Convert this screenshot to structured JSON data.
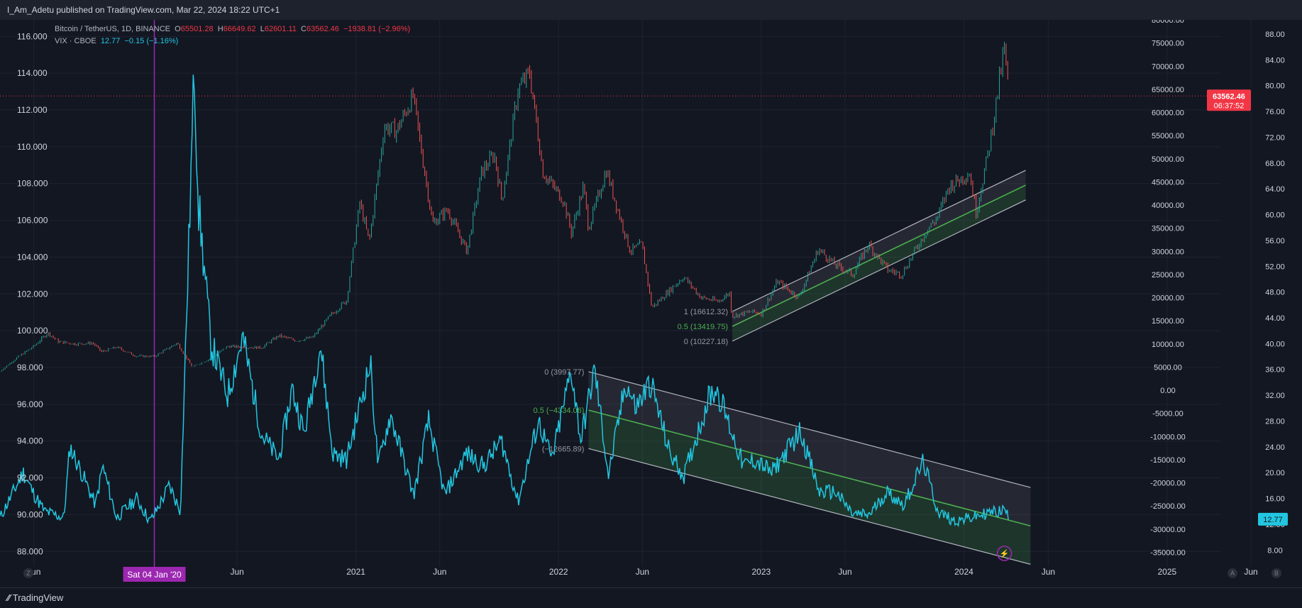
{
  "header": {
    "publisher": "I_Am_Adetu published on TradingView.com, Mar 22, 2024 18:22 UTC+1"
  },
  "footer": {
    "brand": "TradingView"
  },
  "legend": {
    "btc": {
      "label": "Bitcoin / TetherUS, 1D, BINANCE",
      "o_label": "O",
      "o": "65501.28",
      "h_label": "H",
      "h": "66649.62",
      "l_label": "L",
      "l": "62601.11",
      "c_label": "C",
      "c": "63562.46",
      "chg": "−1938.81 (−2.96%)"
    },
    "vix": {
      "label": "VIX · CBOE",
      "value": "12.77",
      "chg": "−0.15 (−1.16%)"
    }
  },
  "colors": {
    "background": "#131722",
    "bull": "#26a69a",
    "bear": "#ef5350",
    "vix": "#22c6e0",
    "price_tag": "#f23645",
    "crosshair": "#9c27b0",
    "midline": "#4caf50",
    "channel": "#787b86"
  },
  "chart_data": {
    "type": "line",
    "x_range": [
      "2019-04-01",
      "2025-09-01"
    ],
    "x_ticks": [
      {
        "label": "Jun",
        "date": "2019-06-01"
      },
      {
        "label": "Jun",
        "date": "2020-06-01"
      },
      {
        "label": "2021",
        "date": "2021-01-01"
      },
      {
        "label": "Jun",
        "date": "2021-06-01"
      },
      {
        "label": "2022",
        "date": "2022-01-01"
      },
      {
        "label": "Jun",
        "date": "2022-06-01"
      },
      {
        "label": "2023",
        "date": "2023-01-01"
      },
      {
        "label": "Jun",
        "date": "2023-06-01"
      },
      {
        "label": "2024",
        "date": "2024-01-01"
      },
      {
        "label": "Jun",
        "date": "2024-06-01"
      },
      {
        "label": "2025",
        "date": "2025-01-01"
      },
      {
        "label": "Jun",
        "date": "2025-06-01"
      }
    ],
    "crosshair_x_label": "Sat 04 Jan '20",
    "left_axis": {
      "ylim": [
        87.2,
        116.9
      ],
      "ticks": [
        "116.000",
        "114.000",
        "112.000",
        "110.000",
        "108.000",
        "106.000",
        "104.000",
        "102.000",
        "100.000",
        "98.000",
        "96.000",
        "94.000",
        "92.000",
        "90.000",
        "88.000"
      ]
    },
    "right_axis_btc": {
      "ylim": [
        -38000,
        80000
      ],
      "ticks": [
        "80000.00",
        "75000.00",
        "70000.00",
        "65000.00",
        "60000.00",
        "55000.00",
        "50000.00",
        "45000.00",
        "40000.00",
        "35000.00",
        "30000.00",
        "25000.00",
        "20000.00",
        "15000.00",
        "10000.00",
        "5000.00",
        "0.00",
        "-5000.00",
        "-10000.00",
        "-15000.00",
        "-20000.00",
        "-25000.00",
        "-30000.00",
        "-35000.00"
      ]
    },
    "right_axis_vix": {
      "ylim": [
        5.5,
        90.2
      ],
      "ticks": [
        "88.00",
        "84.00",
        "80.00",
        "76.00",
        "72.00",
        "68.00",
        "64.00",
        "60.00",
        "56.00",
        "52.00",
        "48.00",
        "44.00",
        "40.00",
        "36.00",
        "32.00",
        "28.00",
        "24.00",
        "20.00",
        "16.00",
        "12.00",
        "8.00"
      ]
    },
    "last_price": {
      "value": "63562.46",
      "countdown": "06:37:52"
    },
    "last_vix": "12.77",
    "series": [
      {
        "name": "Bitcoin / TetherUS",
        "style": "candles",
        "points": [
          [
            "2019-04-01",
            4100
          ],
          [
            "2019-05-01",
            7000
          ],
          [
            "2019-06-01",
            9500
          ],
          [
            "2019-06-26",
            12400
          ],
          [
            "2019-07-15",
            10500
          ],
          [
            "2019-08-15",
            10000
          ],
          [
            "2019-09-15",
            10200
          ],
          [
            "2019-10-01",
            8300
          ],
          [
            "2019-10-28",
            9300
          ],
          [
            "2019-12-01",
            7400
          ],
          [
            "2020-01-04",
            7300
          ],
          [
            "2020-02-14",
            10200
          ],
          [
            "2020-03-12",
            5000
          ],
          [
            "2020-04-15",
            6900
          ],
          [
            "2020-05-15",
            9500
          ],
          [
            "2020-06-15",
            9300
          ],
          [
            "2020-07-15",
            9200
          ],
          [
            "2020-08-15",
            11800
          ],
          [
            "2020-09-15",
            10700
          ],
          [
            "2020-10-15",
            11400
          ],
          [
            "2020-11-15",
            16000
          ],
          [
            "2020-12-15",
            19400
          ],
          [
            "2021-01-08",
            40500
          ],
          [
            "2021-01-25",
            32000
          ],
          [
            "2021-02-21",
            57000
          ],
          [
            "2021-03-15",
            56000
          ],
          [
            "2021-04-14",
            63500
          ],
          [
            "2021-05-19",
            36000
          ],
          [
            "2021-06-15",
            39000
          ],
          [
            "2021-07-20",
            30000
          ],
          [
            "2021-08-15",
            47000
          ],
          [
            "2021-09-07",
            51000
          ],
          [
            "2021-09-21",
            41000
          ],
          [
            "2021-10-20",
            65000
          ],
          [
            "2021-11-10",
            68500
          ],
          [
            "2021-12-04",
            47000
          ],
          [
            "2022-01-10",
            41000
          ],
          [
            "2022-01-24",
            34000
          ],
          [
            "2022-02-15",
            44000
          ],
          [
            "2022-02-24",
            35000
          ],
          [
            "2022-03-28",
            47500
          ],
          [
            "2022-04-15",
            40000
          ],
          [
            "2022-05-10",
            30000
          ],
          [
            "2022-05-31",
            31500
          ],
          [
            "2022-06-18",
            17800
          ],
          [
            "2022-07-15",
            21000
          ],
          [
            "2022-08-14",
            24500
          ],
          [
            "2022-09-15",
            20000
          ],
          [
            "2022-10-15",
            19200
          ],
          [
            "2022-11-05",
            21000
          ],
          [
            "2022-11-09",
            16000
          ],
          [
            "2022-12-15",
            17000
          ],
          [
            "2023-01-01",
            16500
          ],
          [
            "2023-01-30",
            23500
          ],
          [
            "2023-03-10",
            20000
          ],
          [
            "2023-04-14",
            30500
          ],
          [
            "2023-05-15",
            27000
          ],
          [
            "2023-06-15",
            25000
          ],
          [
            "2023-07-13",
            31500
          ],
          [
            "2023-08-17",
            26000
          ],
          [
            "2023-09-11",
            25000
          ],
          [
            "2023-10-23",
            34000
          ],
          [
            "2023-11-15",
            37500
          ],
          [
            "2023-12-05",
            44000
          ],
          [
            "2024-01-11",
            47000
          ],
          [
            "2024-01-23",
            38500
          ],
          [
            "2024-02-15",
            52000
          ],
          [
            "2024-02-28",
            62000
          ],
          [
            "2024-03-05",
            67000
          ],
          [
            "2024-03-14",
            73800
          ],
          [
            "2024-03-22",
            63562
          ]
        ]
      },
      {
        "name": "VIX · CBOE",
        "style": "line",
        "points": [
          [
            "2019-04-01",
            13
          ],
          [
            "2019-05-13",
            20
          ],
          [
            "2019-05-30",
            17
          ],
          [
            "2019-06-20",
            14
          ],
          [
            "2019-07-25",
            13
          ],
          [
            "2019-08-05",
            24
          ],
          [
            "2019-08-26",
            20
          ],
          [
            "2019-09-20",
            15
          ],
          [
            "2019-10-03",
            21
          ],
          [
            "2019-10-28",
            13
          ],
          [
            "2019-12-03",
            16
          ],
          [
            "2019-12-27",
            12.5
          ],
          [
            "2020-01-04",
            13.5
          ],
          [
            "2020-01-31",
            18
          ],
          [
            "2020-02-20",
            14
          ],
          [
            "2020-03-16",
            82.7
          ],
          [
            "2020-03-24",
            61
          ],
          [
            "2020-04-15",
            40
          ],
          [
            "2020-05-15",
            32
          ],
          [
            "2020-06-11",
            41
          ],
          [
            "2020-07-15",
            26
          ],
          [
            "2020-08-15",
            22
          ],
          [
            "2020-09-08",
            33
          ],
          [
            "2020-09-30",
            26
          ],
          [
            "2020-10-29",
            40
          ],
          [
            "2020-11-20",
            23
          ],
          [
            "2020-12-15",
            22
          ],
          [
            "2021-01-27",
            37
          ],
          [
            "2021-02-10",
            21
          ],
          [
            "2021-03-04",
            29
          ],
          [
            "2021-04-15",
            16.5
          ],
          [
            "2021-05-12",
            28
          ],
          [
            "2021-06-10",
            16.5
          ],
          [
            "2021-07-19",
            23
          ],
          [
            "2021-08-19",
            21
          ],
          [
            "2021-09-20",
            25
          ],
          [
            "2021-10-20",
            15.5
          ],
          [
            "2021-11-26",
            28
          ],
          [
            "2021-12-20",
            22
          ],
          [
            "2022-01-24",
            36
          ],
          [
            "2022-02-10",
            25
          ],
          [
            "2022-03-07",
            36
          ],
          [
            "2022-04-01",
            19.5
          ],
          [
            "2022-05-02",
            34
          ],
          [
            "2022-05-20",
            30
          ],
          [
            "2022-06-16",
            34
          ],
          [
            "2022-07-20",
            23
          ],
          [
            "2022-08-15",
            19.5
          ],
          [
            "2022-09-30",
            32
          ],
          [
            "2022-10-13",
            33
          ],
          [
            "2022-11-30",
            21
          ],
          [
            "2022-12-20",
            22
          ],
          [
            "2023-01-20",
            20
          ],
          [
            "2023-03-13",
            26.5
          ],
          [
            "2023-04-15",
            17
          ],
          [
            "2023-05-15",
            17
          ],
          [
            "2023-06-15",
            13.5
          ],
          [
            "2023-07-15",
            13.5
          ],
          [
            "2023-08-15",
            17
          ],
          [
            "2023-09-15",
            15
          ],
          [
            "2023-10-20",
            21.7
          ],
          [
            "2023-11-15",
            14
          ],
          [
            "2023-12-15",
            12.5
          ],
          [
            "2024-01-15",
            13
          ],
          [
            "2024-02-15",
            13.8
          ],
          [
            "2024-03-05",
            14
          ],
          [
            "2024-03-15",
            14.3
          ],
          [
            "2024-03-22",
            12.8
          ]
        ]
      }
    ],
    "annotations": [
      {
        "name": "Upper channel (BTC)",
        "kind": "channel",
        "start": [
          "2022-11-10",
          17000
        ],
        "end": [
          "2024-03-14",
          47500
        ],
        "offset": -6400,
        "labels": [
          "1 (16612.32)",
          "0.5 (13419.75)",
          "0 (10227.18)"
        ]
      },
      {
        "name": "Lower channel (VIX)",
        "kind": "channel",
        "start": [
          "2022-02-24",
          3997.77
        ],
        "end": [
          "2024-04-30",
          -21000
        ],
        "offset": -16600,
        "labels": [
          "0 (3997.77)",
          "0.5 (−4334.06)",
          "(−12665.89)"
        ]
      }
    ]
  }
}
